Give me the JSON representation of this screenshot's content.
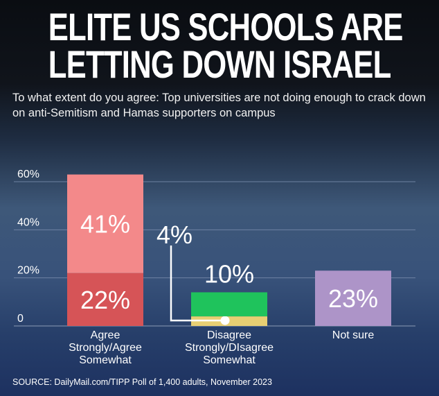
{
  "headline": {
    "line1": "ELITE US SCHOOLS ARE",
    "line2": "LETTING DOWN ISRAEL"
  },
  "subtitle": "To what extent do you agree: Top universities are not doing enough to crack down on anti-Semitism and Hamas supporters on campus",
  "source": "SOURCE: DailyMail.com/TIPP Poll of 1,400  adults, November 2023",
  "colors": {
    "strong_agree": "#d65457",
    "somewhat_agree": "#f3898a",
    "strong_disagree": "#e7cf73",
    "somewhat_disagree": "#1fc35c",
    "not_sure": "#ad94c8"
  },
  "chart_data": {
    "type": "bar",
    "stacked": true,
    "ylim": [
      0,
      60
    ],
    "yticks": [
      {
        "value": 0,
        "label": "0"
      },
      {
        "value": 20,
        "label": "20%"
      },
      {
        "value": 40,
        "label": "40%"
      },
      {
        "value": 60,
        "label": "60%"
      }
    ],
    "grid": true,
    "categories": [
      {
        "label_lines": [
          "Agree",
          "Strongly/Agree",
          "Somewhat"
        ]
      },
      {
        "label_lines": [
          "Disagree",
          "Strongly/DIsagree",
          "Somewhat"
        ]
      },
      {
        "label_lines": [
          "Not sure"
        ]
      }
    ],
    "bars": [
      {
        "segments": [
          {
            "value": 22,
            "label": "22%",
            "color": "#d65457"
          },
          {
            "value": 41,
            "label": "41%",
            "color": "#f3898a"
          }
        ]
      },
      {
        "segments": [
          {
            "value": 4,
            "label": "4%",
            "color": "#e7cf73",
            "callout": true
          },
          {
            "value": 10,
            "label": "10%",
            "color": "#1fc35c",
            "label_above": true
          }
        ]
      },
      {
        "segments": [
          {
            "value": 23,
            "label": "23%",
            "color": "#ad94c8"
          }
        ]
      }
    ]
  }
}
